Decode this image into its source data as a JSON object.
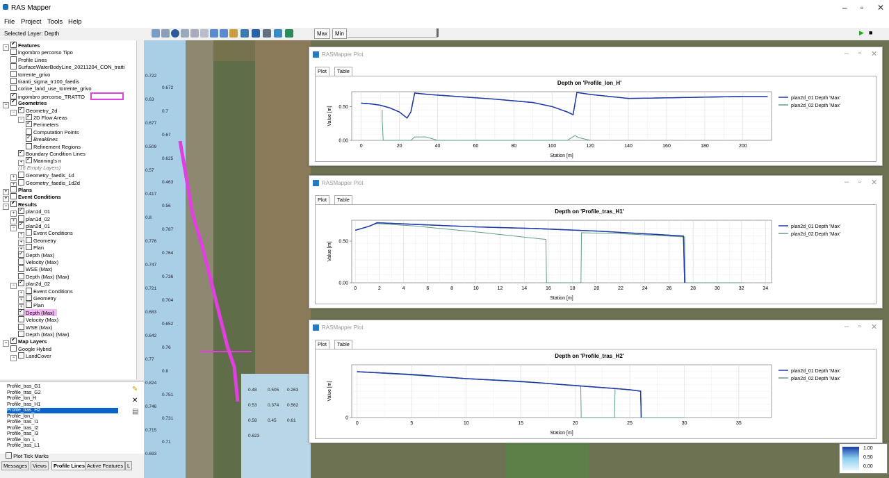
{
  "app": {
    "title": "RAS Mapper"
  },
  "menu": [
    "File",
    "Project",
    "Tools",
    "Help"
  ],
  "selected_layer": "Selected Layer: Depth",
  "toolbar": {
    "max_label": "Max",
    "min_label": "Min"
  },
  "tree": [
    {
      "label": "Features",
      "level": 0,
      "checked": true,
      "bold": true,
      "expander": "−"
    },
    {
      "label": "ingombro percorso Tipo",
      "level": 1,
      "checked": false
    },
    {
      "label": "Profile Lines",
      "level": 1,
      "checked": false
    },
    {
      "label": "SurfaceWaterBodyLine_20211204_CON_tratti",
      "level": 1,
      "checked": false
    },
    {
      "label": "torrente_grivo",
      "level": 1,
      "checked": false
    },
    {
      "label": "tiranti_sigma_tr100_faedis",
      "level": 1,
      "checked": false
    },
    {
      "label": "corine_land_use_torrente_grivo",
      "level": 1,
      "checked": false
    },
    {
      "label": "ingombro percorso_TRATTO",
      "level": 1,
      "checked": true,
      "highlight": true
    },
    {
      "label": "Geometries",
      "level": 0,
      "checked": true,
      "bold": true,
      "expander": "−"
    },
    {
      "label": "Geometry_2d",
      "level": 1,
      "checked": true,
      "expander": "−"
    },
    {
      "label": "2D Flow Areas",
      "level": 2,
      "checked": true,
      "expander": "−"
    },
    {
      "label": "Perimeters",
      "level": 3,
      "checked": true
    },
    {
      "label": "Computation Points",
      "level": 3,
      "checked": false
    },
    {
      "label": "Breaklines",
      "level": 3,
      "checked": true,
      "italic": true
    },
    {
      "label": "Refinement Regions",
      "level": 3,
      "checked": false
    },
    {
      "label": "Boundary Condition Lines",
      "level": 2,
      "checked": true
    },
    {
      "label": "Manning's n",
      "level": 2,
      "checked": true,
      "expander": "+"
    },
    {
      "label": "(16 Empty Layers)",
      "level": 2,
      "note": true
    },
    {
      "label": "Geometry_faedis_1d",
      "level": 1,
      "checked": false,
      "expander": "+"
    },
    {
      "label": "Geometry_faedis_1d2d",
      "level": 1,
      "checked": false,
      "expander": "+"
    },
    {
      "label": "Plans",
      "level": 0,
      "checked": false,
      "bold": true,
      "expander": "+"
    },
    {
      "label": "Event Conditions",
      "level": 0,
      "checked": false,
      "bold": true,
      "expander": "+"
    },
    {
      "label": "Results",
      "level": 0,
      "checked": true,
      "bold": true,
      "expander": "−"
    },
    {
      "label": "plan1d_01",
      "level": 1,
      "checked": true,
      "expander": "+"
    },
    {
      "label": "plan1d_02",
      "level": 1,
      "checked": false,
      "expander": "+"
    },
    {
      "label": "plan2d_01",
      "level": 1,
      "checked": true,
      "expander": "−"
    },
    {
      "label": "Event Conditions",
      "level": 2,
      "checked": false,
      "expander": "+"
    },
    {
      "label": "Geometry",
      "level": 2,
      "checked": false,
      "expander": "+"
    },
    {
      "label": "Plan",
      "level": 2,
      "checked": false,
      "expander": "+"
    },
    {
      "label": "Depth (Max)",
      "level": 2,
      "checked": true
    },
    {
      "label": "Velocity (Max)",
      "level": 2,
      "checked": false
    },
    {
      "label": "WSE (Max)",
      "level": 2,
      "checked": false
    },
    {
      "label": "Depth (Max) (Max)",
      "level": 2,
      "checked": false
    },
    {
      "label": "plan2d_02",
      "level": 1,
      "checked": true,
      "expander": "−"
    },
    {
      "label": "Event Conditions",
      "level": 2,
      "checked": false,
      "expander": "+"
    },
    {
      "label": "Geometry",
      "level": 2,
      "checked": false,
      "expander": "+"
    },
    {
      "label": "Plan",
      "level": 2,
      "checked": false,
      "expander": "+"
    },
    {
      "label": "Depth (Max)",
      "level": 2,
      "checked": true,
      "selected": true
    },
    {
      "label": "Velocity (Max)",
      "level": 2,
      "checked": false
    },
    {
      "label": "WSE (Max)",
      "level": 2,
      "checked": false
    },
    {
      "label": "Depth (Max) (Max)",
      "level": 2,
      "checked": false
    },
    {
      "label": "Map Layers",
      "level": 0,
      "checked": true,
      "bold": true,
      "expander": "−"
    },
    {
      "label": "Google Hybrid",
      "level": 1,
      "checked": false
    },
    {
      "label": "LandCover",
      "level": 1,
      "checked": false,
      "expander": "−"
    }
  ],
  "profiles": [
    "Profile_tras_G1",
    "Profile_tras_G2",
    "Profile_lon_H",
    "Profile_tras_H1",
    "Profile_tras_H2",
    "Profile_lon_I",
    "Profile_tras_I1",
    "Profile_tras_I2",
    "Profile_tras_I3",
    "Profile_lon_L",
    "Profile_tras_L1"
  ],
  "selected_profile": "Profile_tras_H2",
  "plot_tick_marks": "Plot Tick Marks",
  "bottom_tabs": [
    "Messages",
    "Views",
    "Profile Lines",
    "Active Features",
    "L"
  ],
  "active_bottom_tab": "Profile Lines",
  "plot_windows": [
    {
      "title": "RASMapper Plot",
      "tabs": [
        "Plot",
        "Table"
      ]
    },
    {
      "title": "RASMapper Plot",
      "tabs": [
        "Plot",
        "Table"
      ]
    },
    {
      "title": "RASMapper Plot",
      "tabs": [
        "Plot",
        "Table"
      ]
    }
  ],
  "map_labels": [
    "0.722",
    "0.672",
    "0.63",
    "0.7",
    "0.677",
    "0.67",
    "0.509",
    "0.625",
    "0.57",
    "0.463",
    "0.417",
    "0.56",
    "0.8",
    "0.787",
    "0.776",
    "0.764",
    "0.747",
    "0.736",
    "0.721",
    "0.704",
    "0.683",
    "0.652",
    "0.642",
    "0.76",
    "0.77",
    "0.8",
    "0.824",
    "0.751",
    "0.746",
    "0.731",
    "0.715",
    "0.71",
    "0.693",
    "0.48",
    "0.505",
    "0.263",
    "0.53",
    "0.374",
    "0.562",
    "0.58",
    "0.45",
    "0.61",
    "0.623"
  ],
  "legend_values": [
    "1.00",
    "0.50",
    "0.00"
  ],
  "colors": {
    "series1": "#1f3aa8",
    "series2": "#5f9e84",
    "selection": "#e040e0",
    "accent": "#0a64c8"
  },
  "chart_data": [
    {
      "type": "line",
      "title": "Depth on 'Profile_lon_H'",
      "xlabel": "Station [m]",
      "ylabel": "Value [m]",
      "xlim": [
        -5,
        215
      ],
      "ylim": [
        0,
        0.72
      ],
      "xticks": [
        0,
        20,
        40,
        60,
        80,
        100,
        120,
        140,
        160,
        180,
        200
      ],
      "yticks": [
        0.0,
        0.5
      ],
      "grid": true,
      "legend": "top-right",
      "series": [
        {
          "name": "plan2d_01 Depth 'Max'",
          "x": [
            0,
            5,
            10,
            15,
            20,
            24,
            26,
            28,
            35,
            50,
            70,
            90,
            100,
            108,
            111,
            113,
            120,
            140,
            160,
            180,
            200,
            213
          ],
          "y": [
            0.55,
            0.54,
            0.52,
            0.48,
            0.42,
            0.33,
            0.42,
            0.7,
            0.68,
            0.65,
            0.61,
            0.56,
            0.5,
            0.42,
            0.38,
            0.71,
            0.68,
            0.62,
            0.63,
            0.64,
            0.65,
            0.65
          ]
        },
        {
          "name": "plan2d_02 Depth 'Max'",
          "x": [
            11,
            11,
            11.5,
            26,
            28,
            34,
            40,
            108,
            112,
            114,
            120
          ],
          "y": [
            0.45,
            0.3,
            0.0,
            0.0,
            0.05,
            0.05,
            0.0,
            0.0,
            0.07,
            0.04,
            0.0
          ]
        }
      ]
    },
    {
      "type": "line",
      "title": "Depth on 'Profile_tras_H1'",
      "xlabel": "Station [m]",
      "ylabel": "Value [m]",
      "xlim": [
        -0.3,
        34.5
      ],
      "ylim": [
        0,
        0.75
      ],
      "xticks": [
        0,
        2,
        4,
        6,
        8,
        10,
        12,
        14,
        16,
        18,
        20,
        22,
        24,
        26,
        28,
        30,
        32,
        34
      ],
      "yticks": [
        0.0,
        0.5
      ],
      "grid": true,
      "legend": "top-right",
      "series": [
        {
          "name": "plan2d_01 Depth 'Max'",
          "x": [
            0,
            0.5,
            1.2,
            1.8,
            5,
            10,
            15,
            20,
            25,
            27.2,
            27.3
          ],
          "y": [
            0.63,
            0.65,
            0.68,
            0.72,
            0.7,
            0.67,
            0.65,
            0.62,
            0.58,
            0.56,
            0.0
          ]
        },
        {
          "name": "plan2d_02 Depth 'Max'",
          "x": [
            0,
            1.8,
            5,
            10,
            15.8,
            15.85,
            18.7,
            18.75,
            22,
            27.3,
            27.35,
            32
          ],
          "y": [
            0.63,
            0.71,
            0.68,
            0.61,
            0.52,
            0.0,
            0.0,
            0.6,
            0.59,
            0.55,
            0.0,
            0.0
          ]
        }
      ]
    },
    {
      "type": "line",
      "title": "Depth on 'Profile_tras_H2'",
      "xlabel": "Station [m]",
      "ylabel": "Value [m]",
      "xlim": [
        -0.5,
        38
      ],
      "ylim": [
        0,
        0.38
      ],
      "xticks": [
        0,
        5,
        10,
        15,
        20,
        25,
        30,
        35
      ],
      "yticks": [
        0
      ],
      "grid": true,
      "legend": "top-right",
      "series": [
        {
          "name": "plan2d_01 Depth 'Max'",
          "x": [
            0,
            5,
            10,
            15,
            20,
            23.5,
            25,
            26,
            26.05
          ],
          "y": [
            0.33,
            0.31,
            0.28,
            0.26,
            0.23,
            0.21,
            0.2,
            0.19,
            0.0
          ]
        },
        {
          "name": "plan2d_02 Depth 'Max'",
          "x": [
            0,
            10,
            20.5,
            20.55,
            23.6,
            23.65,
            26,
            26.05,
            30
          ],
          "y": [
            0.33,
            0.28,
            0.23,
            0.0,
            0.0,
            0.21,
            0.19,
            0.0,
            0.0
          ]
        }
      ]
    }
  ]
}
